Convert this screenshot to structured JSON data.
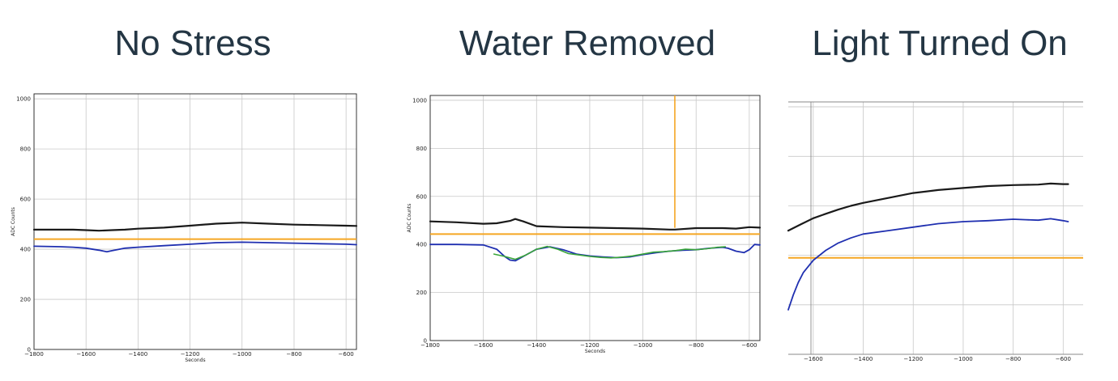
{
  "titles": [
    "No Stress",
    "Water Removed",
    "Light Turned On"
  ],
  "colors": {
    "upper_line": "#1a1a1a",
    "lower_line": "#1f2fb0",
    "threshold": "#f5a623",
    "noise": "#3aa53a",
    "grid": "#c8c8c8"
  },
  "chart_data": [
    {
      "type": "line",
      "title": "No Stress",
      "xlabel": "Seconds",
      "ylabel": "ADC Counts",
      "xlim": [
        -1800,
        -560
      ],
      "ylim": [
        0,
        1020
      ],
      "xticks": [
        -1800,
        -1600,
        -1400,
        -1200,
        -1000,
        -800,
        -600
      ],
      "yticks": [
        0,
        200,
        400,
        600,
        800,
        1000
      ],
      "grid": true,
      "series": [
        {
          "x": [
            -1800,
            -1700,
            -1650,
            -1600,
            -1550,
            -1500,
            -1450,
            -1400,
            -1300,
            -1200,
            -1100,
            -1000,
            -900,
            -800,
            -700,
            -600,
            -560
          ],
          "y": [
            478,
            478,
            478,
            476,
            474,
            476,
            478,
            482,
            486,
            494,
            502,
            506,
            502,
            498,
            496,
            494,
            493
          ]
        },
        {
          "x": [
            -1800,
            -1700,
            -1650,
            -1600,
            -1550,
            -1520,
            -1500,
            -1450,
            -1400,
            -1300,
            -1200,
            -1100,
            -1000,
            -900,
            -800,
            -700,
            -600,
            -560
          ],
          "y": [
            412,
            410,
            408,
            404,
            396,
            390,
            394,
            404,
            408,
            414,
            420,
            426,
            428,
            426,
            424,
            422,
            420,
            418
          ]
        }
      ],
      "hlines": [
        440
      ],
      "vlines": []
    },
    {
      "type": "line",
      "title": "Water Removed",
      "xlabel": "Seconds",
      "ylabel": "ADC Counts",
      "xlim": [
        -1800,
        -560
      ],
      "ylim": [
        0,
        1020
      ],
      "xticks": [
        -1800,
        -1600,
        -1400,
        -1200,
        -1000,
        -800,
        -600
      ],
      "yticks": [
        0,
        200,
        400,
        600,
        800,
        1000
      ],
      "grid": true,
      "series": [
        {
          "x": [
            -1800,
            -1700,
            -1600,
            -1550,
            -1500,
            -1480,
            -1450,
            -1400,
            -1300,
            -1200,
            -1100,
            -1000,
            -900,
            -880,
            -800,
            -700,
            -650,
            -600,
            -560
          ],
          "y": [
            496,
            492,
            486,
            488,
            498,
            506,
            496,
            476,
            472,
            470,
            468,
            466,
            462,
            462,
            468,
            468,
            466,
            472,
            470
          ]
        },
        {
          "x": [
            -1800,
            -1700,
            -1600,
            -1550,
            -1520,
            -1500,
            -1480,
            -1450,
            -1400,
            -1350,
            -1300,
            -1250,
            -1200,
            -1150,
            -1100,
            -1050,
            -1000,
            -950,
            -900,
            -850,
            -800,
            -750,
            -700,
            -680,
            -650,
            -620,
            -600,
            -580,
            -560
          ],
          "y": [
            400,
            400,
            398,
            380,
            350,
            335,
            332,
            350,
            380,
            390,
            378,
            360,
            352,
            348,
            345,
            348,
            358,
            366,
            372,
            376,
            378,
            384,
            388,
            384,
            372,
            366,
            378,
            400,
            398
          ]
        },
        {
          "x": [
            -1560,
            -1520,
            -1480,
            -1440,
            -1400,
            -1360,
            -1320,
            -1280,
            -1240,
            -1200,
            -1160,
            -1120,
            -1080,
            -1040,
            -1000,
            -960,
            -920,
            -880,
            -840,
            -800,
            -760,
            -720,
            -690
          ],
          "y": [
            360,
            350,
            338,
            356,
            380,
            392,
            380,
            362,
            356,
            350,
            346,
            344,
            347,
            352,
            360,
            368,
            370,
            374,
            380,
            378,
            382,
            388,
            390
          ]
        }
      ],
      "hlines": [
        443
      ],
      "vlines": [
        -880
      ]
    },
    {
      "type": "line",
      "title": "Light Turned On",
      "xlabel": "",
      "ylabel": "",
      "xlim": [
        -1700,
        -520
      ],
      "ylim": [
        0,
        1020
      ],
      "xticks": [
        -1600,
        -1400,
        -1200,
        -1000,
        -800,
        -600
      ],
      "yticks": [],
      "grid": true,
      "series": [
        {
          "x": [
            -1700,
            -1650,
            -1600,
            -1550,
            -1500,
            -1450,
            -1400,
            -1300,
            -1200,
            -1100,
            -1000,
            -900,
            -800,
            -700,
            -650,
            -600,
            -580
          ],
          "y": [
            500,
            525,
            550,
            568,
            585,
            600,
            612,
            632,
            652,
            664,
            672,
            680,
            684,
            686,
            690,
            688,
            688
          ]
        },
        {
          "x": [
            -1700,
            -1680,
            -1660,
            -1640,
            -1600,
            -1550,
            -1500,
            -1450,
            -1400,
            -1300,
            -1200,
            -1100,
            -1000,
            -900,
            -800,
            -750,
            -700,
            -650,
            -600,
            -580
          ],
          "y": [
            180,
            240,
            290,
            330,
            380,
            420,
            450,
            470,
            486,
            500,
            514,
            528,
            536,
            540,
            546,
            544,
            542,
            548,
            540,
            536
          ]
        }
      ],
      "hlines": [
        390
      ],
      "vlines": []
    }
  ]
}
